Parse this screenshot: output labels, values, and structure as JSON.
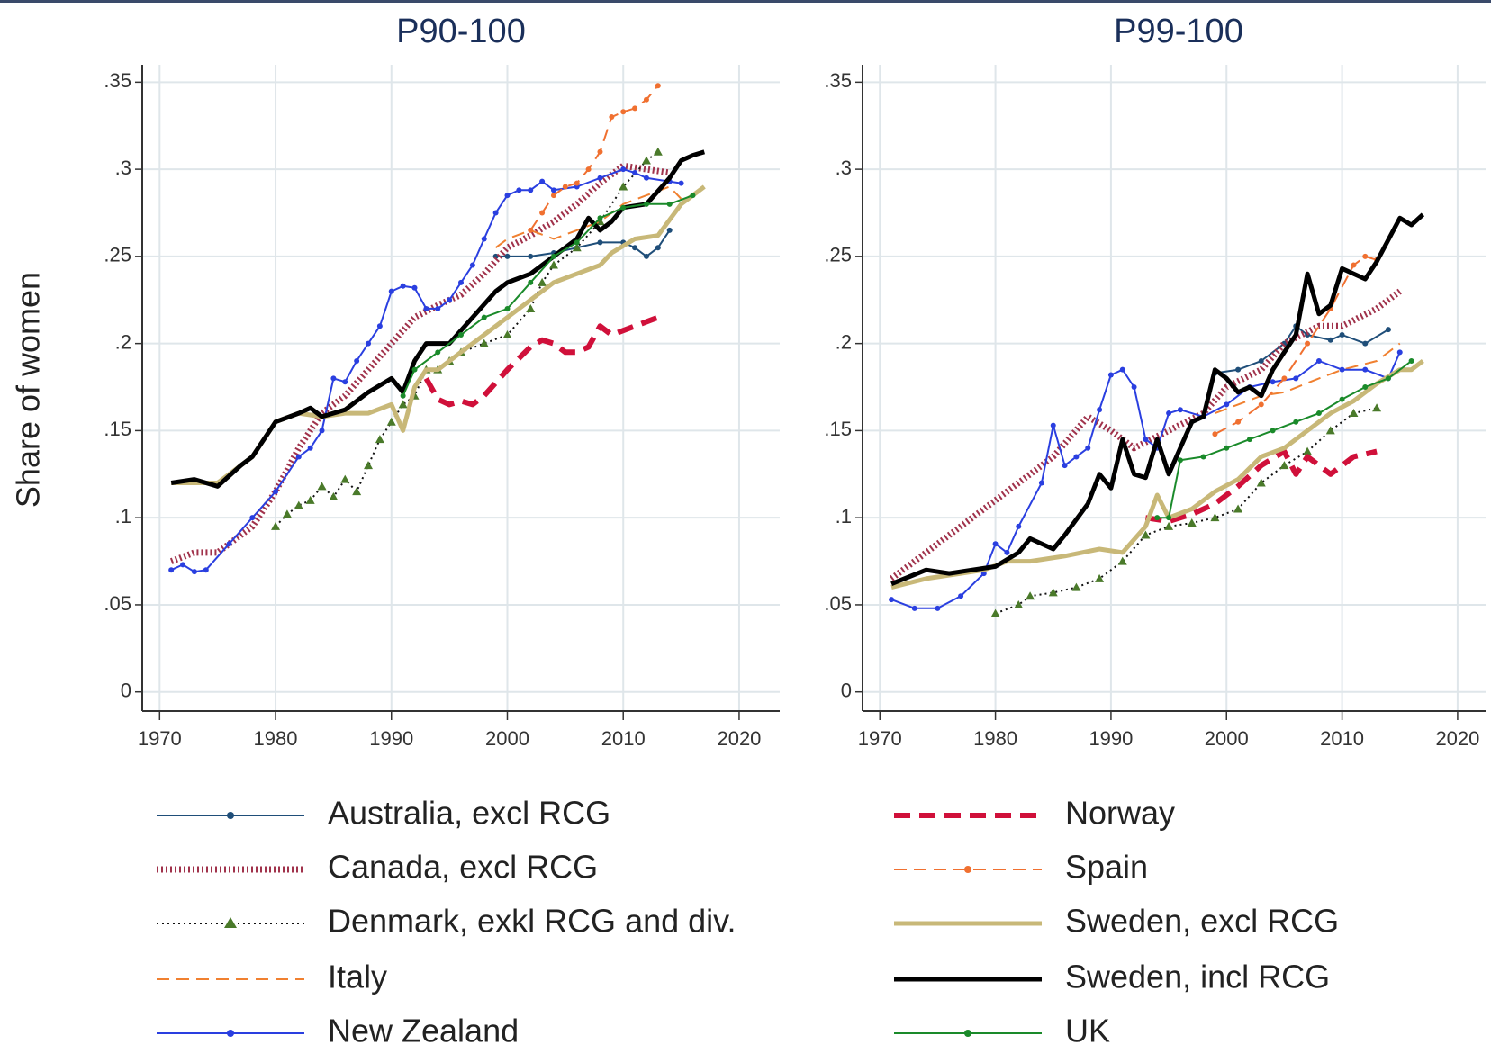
{
  "chart_data": [
    {
      "type": "line",
      "title": "P90-100",
      "y_label": "Share of women",
      "xlim": [
        1968.5,
        2023.5
      ],
      "ylim": [
        -0.011,
        0.36
      ],
      "xticks": [
        1970,
        1980,
        1990,
        2000,
        2010,
        2020
      ],
      "yticks": [
        0,
        {
          "value": 0.05,
          "label": ".05"
        },
        {
          "value": 0.1,
          "label": ".1"
        },
        {
          "value": 0.15,
          "label": ".15"
        },
        {
          "value": 0.2,
          "label": ".2"
        },
        {
          "value": 0.25,
          "label": ".25"
        },
        {
          "value": 0.3,
          "label": ".3"
        },
        {
          "value": 0.35,
          "label": ".35"
        }
      ],
      "grid": true,
      "series": [
        {
          "name": "Australia, excl RCG",
          "color": "#1f4e79",
          "style": "solid",
          "marker": "circle",
          "x": [
            1999,
            2000,
            2002,
            2004,
            2006,
            2008,
            2010,
            2011,
            2012,
            2013,
            2014
          ],
          "values": [
            0.25,
            0.25,
            0.25,
            0.252,
            0.255,
            0.258,
            0.258,
            0.255,
            0.25,
            0.255,
            0.265
          ]
        },
        {
          "name": "Canada, excl RCG",
          "color": "#a0324b",
          "style": "hatch",
          "x": [
            1971,
            1973,
            1975,
            1978,
            1980,
            1982,
            1984,
            1986,
            1988,
            1990,
            1992,
            1994,
            1996,
            1998,
            2000,
            2002,
            2004,
            2006,
            2008,
            2010,
            2012,
            2014
          ],
          "values": [
            0.075,
            0.08,
            0.08,
            0.095,
            0.115,
            0.14,
            0.16,
            0.17,
            0.185,
            0.2,
            0.215,
            0.222,
            0.228,
            0.24,
            0.255,
            0.262,
            0.27,
            0.28,
            0.292,
            0.302,
            0.3,
            0.298
          ]
        },
        {
          "name": "Denmark, exkl RCG and div.",
          "color": "#111111",
          "marker_color": "#4a7a2a",
          "style": "dot",
          "marker": "triangle",
          "x": [
            1980,
            1981,
            1982,
            1983,
            1984,
            1985,
            1986,
            1987,
            1988,
            1989,
            1990,
            1991,
            1992,
            1993,
            1994,
            1995,
            1996,
            1998,
            2000,
            2002,
            2003,
            2004,
            2006,
            2008,
            2010,
            2012,
            2013
          ],
          "values": [
            0.095,
            0.102,
            0.107,
            0.11,
            0.118,
            0.112,
            0.122,
            0.115,
            0.13,
            0.145,
            0.155,
            0.165,
            0.17,
            0.185,
            0.185,
            0.19,
            0.195,
            0.2,
            0.205,
            0.22,
            0.235,
            0.245,
            0.255,
            0.27,
            0.29,
            0.305,
            0.31
          ]
        },
        {
          "name": "Italy",
          "color": "#f08030",
          "style": "dash",
          "x": [
            1999,
            2000,
            2002,
            2004,
            2006,
            2008,
            2010,
            2012,
            2014,
            2015
          ],
          "values": [
            0.255,
            0.26,
            0.265,
            0.26,
            0.265,
            0.27,
            0.28,
            0.285,
            0.29,
            0.283
          ]
        },
        {
          "name": "New Zealand",
          "color": "#2a3fe0",
          "style": "solid",
          "marker": "circle",
          "x": [
            1971,
            1972,
            1973,
            1974,
            1976,
            1978,
            1980,
            1982,
            1983,
            1984,
            1985,
            1986,
            1987,
            1988,
            1989,
            1990,
            1991,
            1992,
            1993,
            1994,
            1995,
            1996,
            1997,
            1998,
            1999,
            2000,
            2001,
            2002,
            2003,
            2004,
            2006,
            2008,
            2010,
            2011,
            2012,
            2014,
            2015
          ],
          "values": [
            0.07,
            0.073,
            0.069,
            0.07,
            0.085,
            0.1,
            0.115,
            0.135,
            0.14,
            0.15,
            0.18,
            0.178,
            0.19,
            0.2,
            0.21,
            0.23,
            0.233,
            0.232,
            0.22,
            0.22,
            0.225,
            0.235,
            0.245,
            0.26,
            0.275,
            0.285,
            0.288,
            0.288,
            0.293,
            0.288,
            0.29,
            0.295,
            0.3,
            0.298,
            0.295,
            0.293,
            0.292
          ]
        },
        {
          "name": "Norway",
          "color": "#d0103a",
          "style": "thick-dash",
          "x": [
            1993,
            1994,
            1995,
            1996,
            1997,
            1998,
            2000,
            2002,
            2003,
            2004,
            2005,
            2006,
            2007,
            2008,
            2009,
            2011,
            2013
          ],
          "values": [
            0.18,
            0.168,
            0.165,
            0.167,
            0.165,
            0.17,
            0.185,
            0.198,
            0.202,
            0.2,
            0.195,
            0.195,
            0.198,
            0.21,
            0.205,
            0.21,
            0.215
          ]
        },
        {
          "name": "Spain",
          "color": "#f07030",
          "style": "dash",
          "marker": "circle",
          "x": [
            2002,
            2003,
            2004,
            2005,
            2006,
            2007,
            2008,
            2009,
            2010,
            2011,
            2012,
            2013
          ],
          "values": [
            0.265,
            0.275,
            0.285,
            0.29,
            0.292,
            0.3,
            0.31,
            0.33,
            0.333,
            0.335,
            0.34,
            0.348
          ]
        },
        {
          "name": "Sweden, excl RCG",
          "color": "#c8b878",
          "style": "thick",
          "x": [
            1971,
            1975,
            1978,
            1980,
            1982,
            1984,
            1986,
            1988,
            1990,
            1991,
            1992,
            1993,
            1994,
            1996,
            1998,
            2000,
            2002,
            2004,
            2006,
            2008,
            2009,
            2011,
            2013,
            2015,
            2017
          ],
          "values": [
            0.12,
            0.12,
            0.135,
            0.155,
            0.16,
            0.158,
            0.16,
            0.16,
            0.165,
            0.15,
            0.175,
            0.185,
            0.185,
            0.195,
            0.205,
            0.215,
            0.225,
            0.235,
            0.24,
            0.245,
            0.252,
            0.26,
            0.262,
            0.28,
            0.29
          ]
        },
        {
          "name": "Sweden, incl RCG",
          "color": "#000000",
          "style": "thick",
          "x": [
            1971,
            1973,
            1975,
            1977,
            1978,
            1980,
            1982,
            1983,
            1984,
            1986,
            1988,
            1990,
            1991,
            1992,
            1993,
            1995,
            1997,
            1999,
            2000,
            2002,
            2004,
            2006,
            2007,
            2008,
            2009,
            2010,
            2012,
            2014,
            2015,
            2016,
            2017
          ],
          "values": [
            0.12,
            0.122,
            0.118,
            0.13,
            0.135,
            0.155,
            0.16,
            0.163,
            0.158,
            0.162,
            0.172,
            0.18,
            0.172,
            0.19,
            0.2,
            0.2,
            0.215,
            0.23,
            0.235,
            0.24,
            0.25,
            0.26,
            0.272,
            0.265,
            0.27,
            0.278,
            0.28,
            0.295,
            0.305,
            0.308,
            0.31
          ]
        },
        {
          "name": "UK",
          "color": "#1a8a2a",
          "style": "solid",
          "marker": "circle",
          "x": [
            1991,
            1992,
            1994,
            1996,
            1998,
            2000,
            2002,
            2004,
            2006,
            2008,
            2010,
            2012,
            2014,
            2016
          ],
          "values": [
            0.17,
            0.185,
            0.195,
            0.205,
            0.215,
            0.22,
            0.235,
            0.25,
            0.258,
            0.272,
            0.278,
            0.28,
            0.28,
            0.285
          ]
        }
      ]
    },
    {
      "type": "line",
      "title": "P99-100",
      "xlim": [
        1968.5,
        2022.5
      ],
      "ylim": [
        -0.011,
        0.36
      ],
      "xticks": [
        1970,
        1980,
        1990,
        2000,
        2010,
        2020
      ],
      "yticks": [
        0,
        {
          "value": 0.05,
          "label": ".05"
        },
        {
          "value": 0.1,
          "label": ".1"
        },
        {
          "value": 0.15,
          "label": ".15"
        },
        {
          "value": 0.2,
          "label": ".2"
        },
        {
          "value": 0.25,
          "label": ".25"
        },
        {
          "value": 0.3,
          "label": ".3"
        },
        {
          "value": 0.35,
          "label": ".35"
        }
      ],
      "grid": true,
      "series": [
        {
          "name": "Australia, excl RCG",
          "color": "#1f4e79",
          "style": "solid",
          "marker": "circle",
          "x": [
            1999,
            2001,
            2003,
            2005,
            2006,
            2007,
            2009,
            2010,
            2012,
            2014
          ],
          "values": [
            0.183,
            0.185,
            0.19,
            0.2,
            0.21,
            0.205,
            0.202,
            0.205,
            0.2,
            0.208
          ]
        },
        {
          "name": "Canada, excl RCG",
          "color": "#a0324b",
          "style": "hatch",
          "x": [
            1971,
            1975,
            1980,
            1985,
            1988,
            1990,
            1992,
            1995,
            1998,
            2000,
            2003,
            2005,
            2008,
            2010,
            2013,
            2015
          ],
          "values": [
            0.065,
            0.085,
            0.11,
            0.135,
            0.158,
            0.15,
            0.14,
            0.15,
            0.16,
            0.175,
            0.185,
            0.2,
            0.21,
            0.21,
            0.22,
            0.23
          ]
        },
        {
          "name": "Denmark, exkl RCG and div.",
          "color": "#111111",
          "marker_color": "#4a7a2a",
          "style": "dot",
          "marker": "triangle",
          "x": [
            1980,
            1982,
            1983,
            1985,
            1987,
            1989,
            1991,
            1993,
            1995,
            1997,
            1999,
            2001,
            2003,
            2005,
            2007,
            2009,
            2011,
            2013
          ],
          "values": [
            0.045,
            0.05,
            0.055,
            0.057,
            0.06,
            0.065,
            0.075,
            0.09,
            0.095,
            0.097,
            0.1,
            0.105,
            0.12,
            0.13,
            0.138,
            0.15,
            0.16,
            0.163
          ]
        },
        {
          "name": "Italy",
          "color": "#f08030",
          "style": "dash",
          "x": [
            1999,
            2001,
            2003,
            2005,
            2008,
            2010,
            2013,
            2015
          ],
          "values": [
            0.16,
            0.165,
            0.17,
            0.172,
            0.18,
            0.185,
            0.19,
            0.2
          ]
        },
        {
          "name": "New Zealand",
          "color": "#2a3fe0",
          "style": "solid",
          "marker": "circle",
          "x": [
            1971,
            1973,
            1975,
            1977,
            1979,
            1980,
            1981,
            1982,
            1984,
            1985,
            1986,
            1987,
            1988,
            1989,
            1990,
            1991,
            1992,
            1993,
            1994,
            1995,
            1996,
            1998,
            2000,
            2002,
            2004,
            2006,
            2008,
            2010,
            2012,
            2014,
            2015
          ],
          "values": [
            0.053,
            0.048,
            0.048,
            0.055,
            0.068,
            0.085,
            0.08,
            0.095,
            0.12,
            0.153,
            0.13,
            0.135,
            0.14,
            0.162,
            0.182,
            0.185,
            0.175,
            0.145,
            0.14,
            0.16,
            0.162,
            0.158,
            0.165,
            0.175,
            0.178,
            0.18,
            0.19,
            0.185,
            0.185,
            0.18,
            0.195
          ]
        },
        {
          "name": "Norway",
          "color": "#d0103a",
          "style": "thick-dash",
          "x": [
            1993,
            1995,
            1997,
            1999,
            2001,
            2003,
            2005,
            2006,
            2007,
            2009,
            2011,
            2013
          ],
          "values": [
            0.1,
            0.098,
            0.102,
            0.108,
            0.118,
            0.13,
            0.138,
            0.125,
            0.135,
            0.125,
            0.135,
            0.138
          ]
        },
        {
          "name": "Spain",
          "color": "#f07030",
          "style": "dash",
          "marker": "circle",
          "x": [
            1999,
            2001,
            2003,
            2005,
            2007,
            2009,
            2011,
            2012,
            2013
          ],
          "values": [
            0.148,
            0.155,
            0.165,
            0.18,
            0.2,
            0.22,
            0.245,
            0.25,
            0.248
          ]
        },
        {
          "name": "Sweden, excl RCG",
          "color": "#c8b878",
          "style": "thick",
          "x": [
            1971,
            1974,
            1977,
            1979,
            1981,
            1983,
            1986,
            1989,
            1991,
            1993,
            1994,
            1995,
            1997,
            1999,
            2001,
            2003,
            2005,
            2007,
            2009,
            2011,
            2013,
            2015,
            2016,
            2017
          ],
          "values": [
            0.06,
            0.065,
            0.068,
            0.07,
            0.075,
            0.075,
            0.078,
            0.082,
            0.08,
            0.095,
            0.113,
            0.1,
            0.105,
            0.115,
            0.122,
            0.135,
            0.14,
            0.15,
            0.16,
            0.167,
            0.177,
            0.185,
            0.185,
            0.19
          ]
        },
        {
          "name": "Sweden, incl RCG",
          "color": "#000000",
          "style": "thick",
          "x": [
            1971,
            1974,
            1976,
            1978,
            1980,
            1982,
            1983,
            1985,
            1986,
            1988,
            1989,
            1990,
            1991,
            1992,
            1993,
            1994,
            1995,
            1996,
            1997,
            1998,
            1999,
            2000,
            2001,
            2002,
            2003,
            2004,
            2005,
            2006,
            2007,
            2008,
            2009,
            2010,
            2012,
            2013,
            2015,
            2016,
            2017
          ],
          "values": [
            0.062,
            0.07,
            0.068,
            0.07,
            0.072,
            0.08,
            0.088,
            0.082,
            0.09,
            0.108,
            0.125,
            0.117,
            0.145,
            0.125,
            0.123,
            0.145,
            0.125,
            0.14,
            0.155,
            0.158,
            0.185,
            0.18,
            0.172,
            0.175,
            0.17,
            0.185,
            0.195,
            0.205,
            0.24,
            0.217,
            0.222,
            0.243,
            0.237,
            0.247,
            0.272,
            0.268,
            0.274
          ]
        },
        {
          "name": "UK",
          "color": "#1a8a2a",
          "style": "solid",
          "marker": "circle",
          "x": [
            1994,
            1995,
            1996,
            1998,
            2000,
            2002,
            2004,
            2006,
            2008,
            2010,
            2012,
            2014,
            2016
          ],
          "values": [
            0.1,
            0.1,
            0.133,
            0.135,
            0.14,
            0.145,
            0.15,
            0.155,
            0.16,
            0.168,
            0.175,
            0.18,
            0.19
          ]
        }
      ]
    }
  ]
}
